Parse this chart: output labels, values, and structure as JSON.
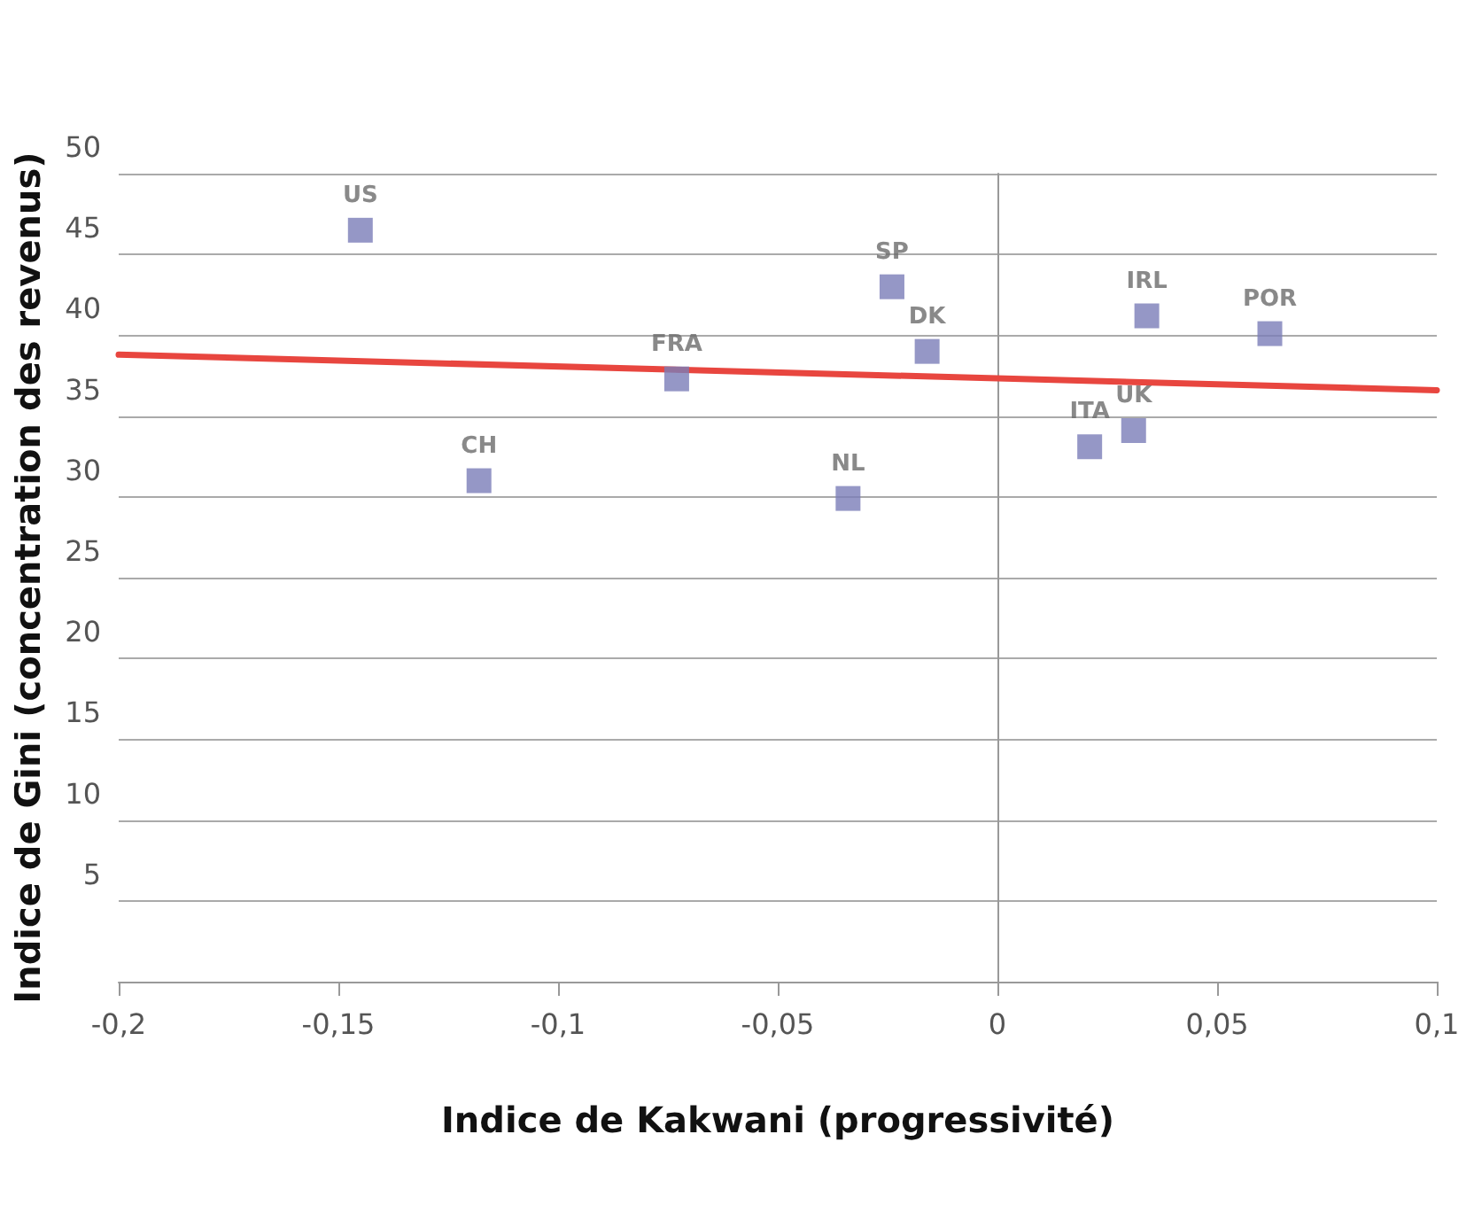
{
  "chart_data": {
    "type": "scatter",
    "xlabel": "Indice de Kakwani (progressivité)",
    "ylabel": "Indice de Gini (concentration des revenus)",
    "x": [
      -0.145,
      -0.118,
      -0.073,
      -0.034,
      -0.024,
      -0.016,
      0.021,
      0.031,
      0.034,
      0.062
    ],
    "series": [
      {
        "color": "#7a7db8",
        "marker": "square",
        "values": [
          46.5,
          31.0,
          37.3,
          29.9,
          43.0,
          39.0,
          33.1,
          34.1,
          41.2,
          40.1
        ],
        "value_labels": [
          "US",
          "CH",
          "FRA",
          "NL",
          "SP",
          "DK",
          "ITA",
          "UK",
          "IRL",
          "POR"
        ]
      },
      {
        "type": "line",
        "color": "#e8463f",
        "x": [
          -0.2,
          0.1
        ],
        "values": [
          38.8,
          36.6
        ]
      }
    ],
    "xlim": [
      -0.2,
      0.1
    ],
    "ylim": [
      0,
      50
    ],
    "xticks": [
      {
        "value": -0.2,
        "label": "-0,2"
      },
      {
        "value": -0.15,
        "label": "-0,15"
      },
      {
        "value": -0.1,
        "label": "-0,1"
      },
      {
        "value": -0.05,
        "label": "-0,05"
      },
      0,
      {
        "value": 0.05,
        "label": "0,05"
      },
      {
        "value": 0.1,
        "label": "0,1"
      }
    ],
    "yticks": [
      {
        "value": 0,
        "label": null
      },
      5,
      10,
      15,
      20,
      25,
      30,
      35,
      40,
      45,
      50
    ],
    "grid": "y"
  }
}
